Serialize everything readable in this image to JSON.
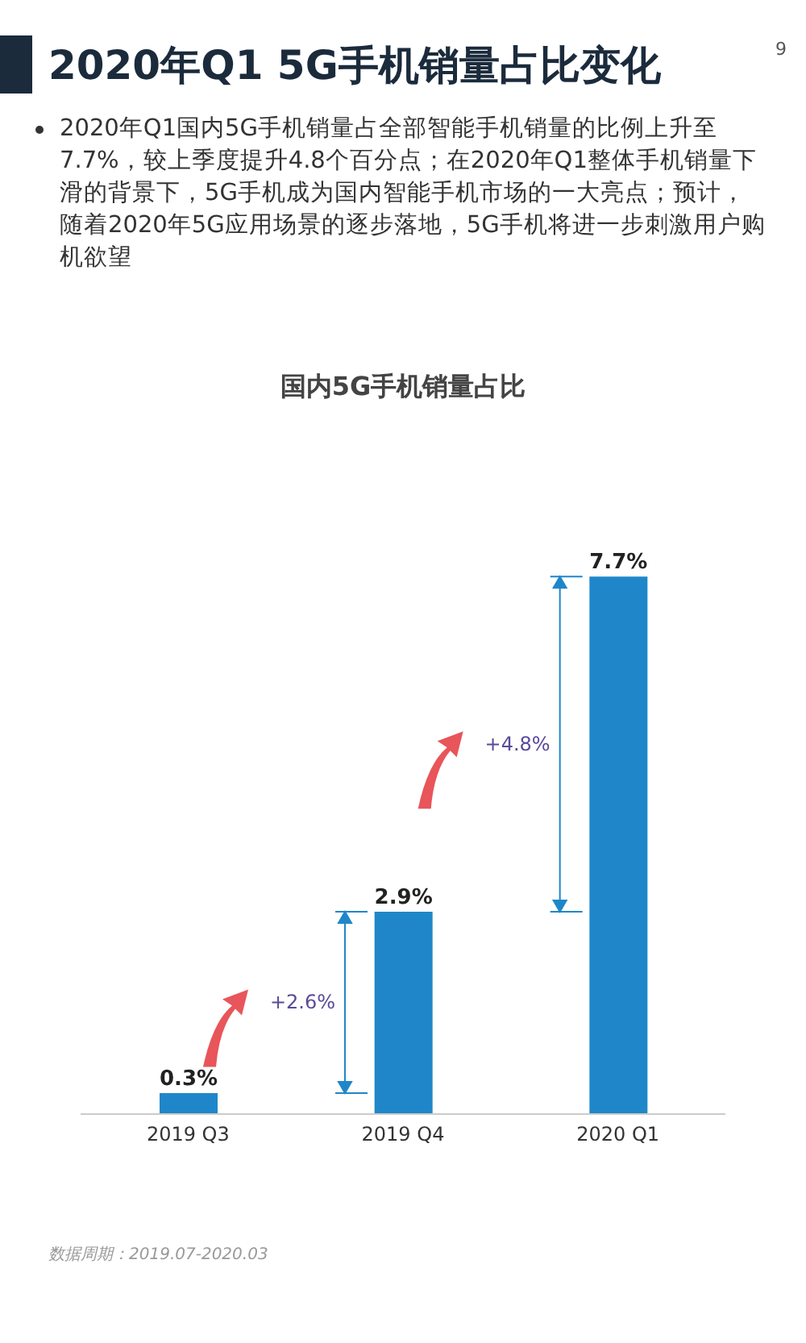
{
  "chart_data": {
    "type": "bar",
    "title": "2020年Q1 5G手机销量占比变化",
    "subtitle": "2020年Q1国内5G手机销量占全部智能手机销量的比例上升至7.7%，较上季度提升4.8个百分点；在2020年Q1整体手机销量下滑的背景下，5G手机成为国内智能手机市场的一大亮点；预计，随着2020年5G应用场景的逐步落地，5G手机将进一步刺激用户购机欲望",
    "categories": [
      "2019 Q3",
      "2019 Q4",
      "2020 Q1"
    ],
    "values": [
      0.3,
      2.9,
      7.7
    ],
    "value_labels": [
      "0.3%",
      "2.9%",
      "7.7%"
    ],
    "color": "#1f87c9",
    "grid": false,
    "annotations": [
      "国内5G手机销量占比",
      "+2.6%",
      "+4.8%",
      "数据周期：2019.07-2020.03",
      "9"
    ]
  }
}
